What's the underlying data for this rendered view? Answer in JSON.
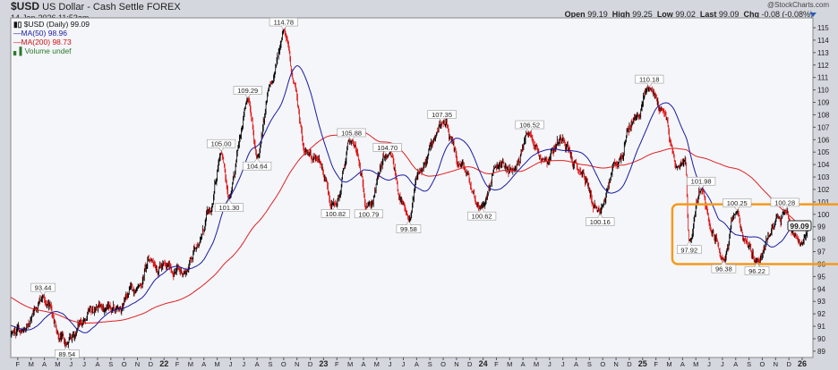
{
  "header": {
    "symbol": "$USD",
    "name": "US Dollar - Cash Settle  FOREX",
    "date": "14-Jan-2026 11:53am",
    "copyright": "@StockCharts.com",
    "open_label": "Open",
    "open": "99.19",
    "high_label": "High",
    "high": "99.25",
    "low_label": "Low",
    "low": "99.02",
    "last_label": "Last",
    "last": "99.09",
    "chg_label": "Chg",
    "chg": "-0.08 (-0.08%)"
  },
  "legend": {
    "price": "$USD (Daily) 99.09",
    "ma50": "MA(50) 98.96",
    "ma200": "MA(200) 98.73",
    "volume": "Volume undef"
  },
  "colors": {
    "up": "#000000",
    "down": "#e01010",
    "ma50": "#1a1aa0",
    "ma200": "#e02020",
    "highlight": "#f39a1e",
    "plot_bg": "#f5f6fa"
  },
  "chart_data": {
    "type": "ohlc-line",
    "title": "$USD (Daily)",
    "xlabel": "",
    "ylabel": "",
    "ylim": [
      88.5,
      115.8
    ],
    "y_ticks": [
      89,
      90,
      91,
      92,
      93,
      94,
      95,
      96,
      97,
      98,
      99,
      100,
      101,
      102,
      103,
      104,
      105,
      106,
      107,
      108,
      109,
      110,
      111,
      112,
      113,
      114,
      115
    ],
    "x_ticks": [
      "F",
      "M",
      "A",
      "M",
      "J",
      "J",
      "A",
      "S",
      "O",
      "N",
      "D",
      "22",
      "F",
      "M",
      "A",
      "M",
      "J",
      "J",
      "A",
      "S",
      "O",
      "N",
      "D",
      "23",
      "F",
      "M",
      "A",
      "M",
      "J",
      "J",
      "A",
      "S",
      "O",
      "N",
      "D",
      "24",
      "F",
      "M",
      "A",
      "M",
      "J",
      "J",
      "A",
      "S",
      "O",
      "N",
      "D",
      "25",
      "F",
      "M",
      "A",
      "M",
      "J",
      "J",
      "A",
      "S",
      "O",
      "N",
      "D",
      "26"
    ],
    "grid": false,
    "series_note": "months since Jan-2021 (t) vs price pivot path",
    "price_path": [
      [
        -10,
        97.5
      ],
      [
        -6,
        94.5
      ],
      [
        -2,
        91.5
      ],
      [
        0.5,
        90.4
      ],
      [
        1.5,
        90.8
      ],
      [
        2.9,
        93.44
      ],
      [
        4.7,
        89.54
      ],
      [
        6,
        91.5
      ],
      [
        7.2,
        92.6
      ],
      [
        8.5,
        92.5
      ],
      [
        10,
        94.2
      ],
      [
        11,
        96.3
      ],
      [
        12.2,
        95.8
      ],
      [
        13.5,
        95.3
      ],
      [
        14.5,
        97.5
      ],
      [
        15.5,
        100.2
      ],
      [
        16.3,
        105.0
      ],
      [
        16.9,
        101.3
      ],
      [
        18.3,
        109.29
      ],
      [
        19.0,
        104.64
      ],
      [
        20.1,
        110.5
      ],
      [
        21.0,
        114.78
      ],
      [
        21.8,
        110.5
      ],
      [
        22.6,
        105
      ],
      [
        23.5,
        104.5
      ],
      [
        24.9,
        100.82
      ],
      [
        26.1,
        105.88
      ],
      [
        27.4,
        100.79
      ],
      [
        28.8,
        104.7
      ],
      [
        30.4,
        99.58
      ],
      [
        31.3,
        103.5
      ],
      [
        32.9,
        107.35
      ],
      [
        34.2,
        104
      ],
      [
        35.9,
        100.62
      ],
      [
        37,
        103.8
      ],
      [
        38.2,
        103.5
      ],
      [
        39.5,
        106.52
      ],
      [
        40.5,
        104.5
      ],
      [
        42,
        106.1
      ],
      [
        43.2,
        103.5
      ],
      [
        44.8,
        100.16
      ],
      [
        46,
        104
      ],
      [
        47.5,
        107.8
      ],
      [
        48.5,
        110.18
      ],
      [
        49.5,
        108.4
      ],
      [
        50.6,
        103.8
      ],
      [
        51.2,
        104.4
      ],
      [
        51.5,
        97.92
      ],
      [
        52.4,
        101.98
      ],
      [
        53.2,
        98.5
      ],
      [
        54.1,
        96.38
      ],
      [
        55.1,
        100.25
      ],
      [
        55.7,
        97.9
      ],
      [
        56.6,
        96.22
      ],
      [
        57.5,
        98.2
      ],
      [
        58.1,
        99.8
      ],
      [
        58.7,
        100.28
      ],
      [
        59.5,
        98.3
      ],
      [
        60,
        97.6
      ],
      [
        60.5,
        99.09
      ]
    ],
    "pivot_labels": [
      {
        "t": 2.9,
        "value": 93.44,
        "label": "93.44",
        "kind": "high"
      },
      {
        "t": 4.7,
        "value": 89.54,
        "label": "89.54",
        "kind": "low"
      },
      {
        "t": 16.3,
        "value": 105.0,
        "label": "105.00",
        "kind": "high"
      },
      {
        "t": 16.9,
        "value": 101.3,
        "label": "101.30",
        "kind": "low"
      },
      {
        "t": 18.3,
        "value": 109.29,
        "label": "109.29",
        "kind": "high"
      },
      {
        "t": 19.0,
        "value": 104.64,
        "label": "104.64",
        "kind": "low"
      },
      {
        "t": 21.0,
        "value": 114.78,
        "label": "114.78",
        "kind": "high"
      },
      {
        "t": 24.9,
        "value": 100.82,
        "label": "100.82",
        "kind": "low"
      },
      {
        "t": 26.1,
        "value": 105.88,
        "label": "105.88",
        "kind": "high"
      },
      {
        "t": 27.4,
        "value": 100.79,
        "label": "100.79",
        "kind": "low"
      },
      {
        "t": 28.8,
        "value": 104.7,
        "label": "104.70",
        "kind": "high"
      },
      {
        "t": 30.4,
        "value": 99.58,
        "label": "99.58",
        "kind": "low"
      },
      {
        "t": 32.9,
        "value": 107.35,
        "label": "107.35",
        "kind": "high"
      },
      {
        "t": 35.9,
        "value": 100.62,
        "label": "100.62",
        "kind": "low"
      },
      {
        "t": 39.5,
        "value": 106.52,
        "label": "106.52",
        "kind": "high"
      },
      {
        "t": 44.8,
        "value": 100.16,
        "label": "100.16",
        "kind": "low"
      },
      {
        "t": 48.5,
        "value": 110.18,
        "label": "110.18",
        "kind": "high"
      },
      {
        "t": 51.5,
        "value": 97.92,
        "label": "97.92",
        "kind": "low"
      },
      {
        "t": 52.4,
        "value": 101.98,
        "label": "101.98",
        "kind": "high"
      },
      {
        "t": 54.1,
        "value": 96.38,
        "label": "96.38",
        "kind": "low"
      },
      {
        "t": 55.1,
        "value": 100.25,
        "label": "100.25",
        "kind": "high"
      },
      {
        "t": 56.6,
        "value": 96.22,
        "label": "96.22",
        "kind": "low"
      },
      {
        "t": 58.7,
        "value": 100.28,
        "label": "100.28",
        "kind": "high"
      }
    ],
    "last_price_label": "99.09",
    "highlight_range": [
      96.0,
      100.8
    ],
    "highlight_start_t": 50.5
  }
}
